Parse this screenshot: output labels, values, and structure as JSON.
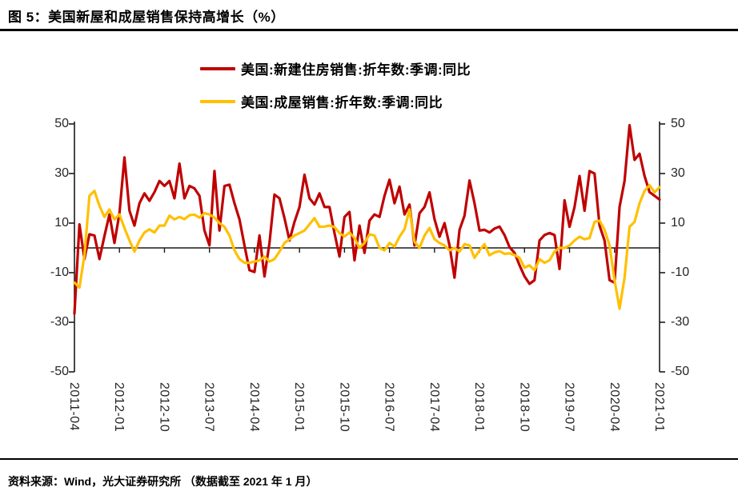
{
  "title": "图 5：美国新屋和成屋销售保持高增长（%）",
  "source_note": "资料来源：Wind，光大证券研究所 （数据截至 2021 年 1 月）",
  "colors": {
    "new_home_series": "#C00000",
    "existing_home_series": "#FFC000",
    "axis": "#1a1a1a",
    "rule": "#000000"
  },
  "chart_data": {
    "type": "line",
    "frequency": "monthly",
    "x_start": "2011-04",
    "x_end": "2021-01",
    "n_points": 118,
    "x_tick_interval_months": 9,
    "x_tick_labels": [
      "2011-04",
      "2012-01",
      "2012-10",
      "2013-07",
      "2014-04",
      "2015-01",
      "2015-10",
      "2016-07",
      "2017-04",
      "2018-01",
      "2018-10",
      "2019-07",
      "2020-04",
      "2021-01"
    ],
    "y_ticks": [
      50,
      30,
      10,
      -10,
      -30,
      -50
    ],
    "ylim": [
      -50,
      50
    ],
    "grid": false,
    "legend_position": "top-center",
    "series": [
      {
        "name": "美国:新建住房销售:折年数:季调:同比",
        "color": "#C00000",
        "values": [
          -26.5,
          9.5,
          -4.5,
          5.5,
          5,
          -4.5,
          4.8,
          13.5,
          2,
          14,
          36.5,
          15,
          9,
          18,
          22,
          19,
          22.5,
          27,
          25,
          27,
          20,
          34,
          20,
          25,
          24,
          21,
          7,
          1,
          31,
          7,
          25,
          25.5,
          18,
          11.5,
          1,
          -9,
          -9.7,
          5,
          -11.5,
          2,
          21.5,
          20,
          12,
          3,
          10.5,
          16.5,
          29.5,
          20,
          17.5,
          22,
          16.5,
          16.5,
          6,
          -3.5,
          12.5,
          14.5,
          -5,
          9,
          -2,
          11,
          13.5,
          12.5,
          21,
          27.5,
          18,
          24.7,
          13.5,
          17.5,
          1,
          14,
          16.5,
          22.4,
          11.6,
          4.5,
          10,
          1,
          -12,
          7.3,
          13,
          27.2,
          18,
          7,
          7.3,
          6.2,
          7.8,
          8.6,
          5.2,
          0.3,
          -2,
          -7,
          -11.5,
          -14.5,
          -13,
          3,
          5.2,
          6,
          5.2,
          -8.5,
          19.2,
          8.5,
          16.5,
          29,
          15,
          31,
          30,
          9,
          3,
          -13,
          -14,
          16.5,
          27,
          49.5,
          35.5,
          38,
          29,
          22.5,
          21,
          19.5
        ]
      },
      {
        "name": "美国:成屋销售:折年数:季调:同比",
        "color": "#FFC000",
        "values": [
          -14,
          -16,
          -3,
          21,
          23,
          17,
          12.5,
          15.5,
          11.5,
          13.5,
          8,
          3,
          -1.5,
          3,
          6.2,
          7.5,
          6.2,
          9,
          9,
          13,
          11.5,
          12.5,
          11.6,
          13.2,
          13.4,
          12.2,
          14,
          13.5,
          12.2,
          10,
          8.5,
          5,
          -1,
          -4.5,
          -6,
          -6,
          -5.5,
          -5,
          -3.5,
          -5.5,
          -4.5,
          -1.5,
          2,
          3.5,
          5,
          6,
          7,
          9.5,
          12,
          8.5,
          8.6,
          9,
          8.4,
          6,
          4.6,
          6.2,
          4,
          0,
          2,
          5.5,
          5,
          0,
          -1,
          2,
          0.5,
          4.5,
          7.5,
          15.5,
          2.5,
          0,
          5,
          8,
          3.5,
          2,
          1,
          -1,
          0,
          -1.5,
          1.5,
          1,
          -4,
          -1,
          1.5,
          -3,
          -1.8,
          -1.3,
          -2.4,
          -2.2,
          -2.9,
          -4,
          -8,
          -7,
          -9,
          -4.5,
          -6,
          -5,
          -1.5,
          0,
          0,
          1,
          3,
          4.5,
          3.5,
          4,
          10.5,
          11,
          7.3,
          1,
          -13,
          -24.5,
          -12,
          8.5,
          10.5,
          18,
          23,
          25.3,
          22.4,
          24.5
        ]
      }
    ]
  }
}
